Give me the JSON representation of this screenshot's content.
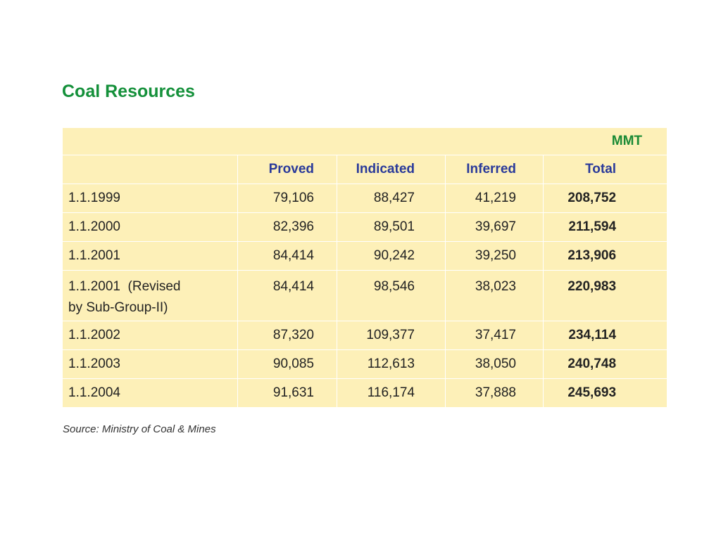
{
  "title": "Coal Resources",
  "table": {
    "unit": "MMT",
    "headers": [
      "",
      "Proved",
      "Indicated",
      "Inferred",
      "Total"
    ],
    "rows": [
      {
        "year": "1.1.1999",
        "proved": "79,106",
        "indicated": "88,427",
        "inferred": "41,219",
        "total": "208,752"
      },
      {
        "year": "1.1.2000",
        "proved": "82,396",
        "indicated": "89,501",
        "inferred": "39,697",
        "total": "211,594"
      },
      {
        "year": "1.1.2001",
        "proved": "84,414",
        "indicated": "90,242",
        "inferred": "39,250",
        "total": "213,906"
      },
      {
        "year": "1.1.2001  (Revised",
        "year_line2": "by Sub-Group-II)",
        "proved": "84,414",
        "indicated": "98,546",
        "inferred": "38,023",
        "total": "220,983"
      },
      {
        "year": "1.1.2002",
        "proved": "87,320",
        "indicated": "109,377",
        "inferred": "37,417",
        "total": "234,114"
      },
      {
        "year": "1.1.2003",
        "proved": "90,085",
        "indicated": "112,613",
        "inferred": "38,050",
        "total": "240,748"
      },
      {
        "year": "1.1.2004",
        "proved": "91,631",
        "indicated": "116,174",
        "inferred": "37,888",
        "total": "245,693"
      }
    ]
  },
  "source": "Source: Ministry of Coal & Mines",
  "colors": {
    "title": "#14903a",
    "header": "#2a3a9a",
    "unit": "#1a8a35",
    "table_bg": "#fdf0b8"
  }
}
